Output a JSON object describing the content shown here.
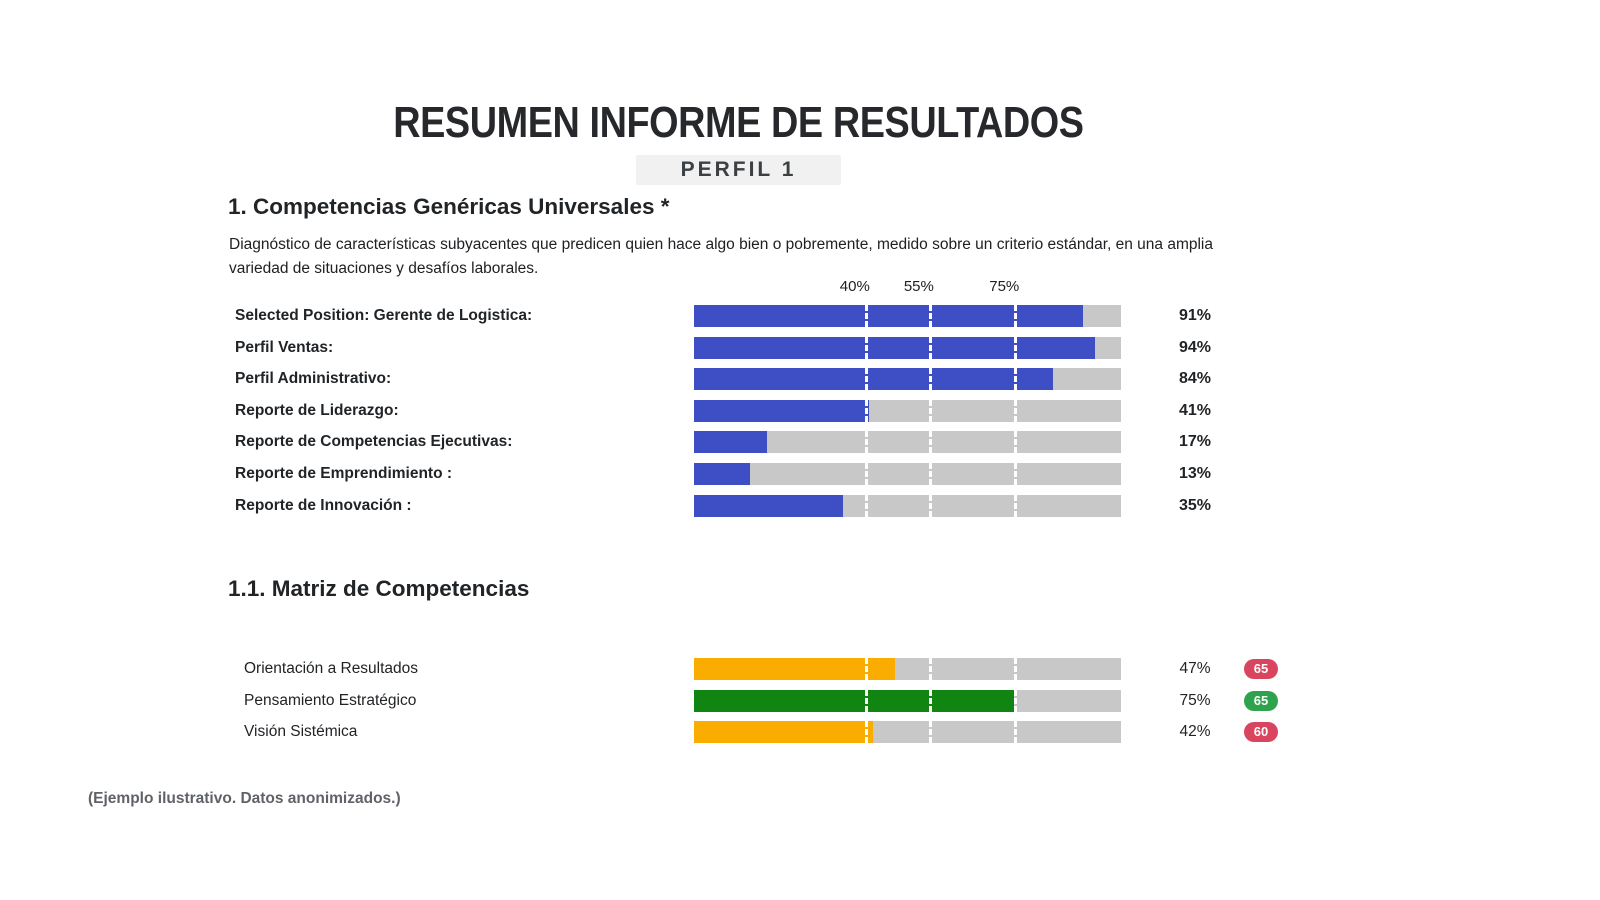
{
  "page": {
    "title": "RESUMEN INFORME DE RESULTADOS",
    "subtitle": "PERFIL 1",
    "footnote": "(Ejemplo ilustrativo. Datos anonimizados.)"
  },
  "sections": {
    "s1": {
      "heading": "1. Competencias Genéricas Universales *",
      "description": "Diagnóstico de características subyacentes que predicen quien hace algo bien o pobremente, medido sobre un criterio estándar, en una amplia variedad de situaciones y desafíos laborales."
    },
    "s11": {
      "heading": "1.1. Matriz de Competencias"
    }
  },
  "colors": {
    "bar_blue": "#3e4ec5",
    "bar_orange": "#fbac00",
    "bar_green": "#118511",
    "track_gray": "#c8c8c8",
    "badge_red": "#d9455f",
    "badge_green": "#2ea24d"
  },
  "chart_data": [
    {
      "type": "bar",
      "title": "Competencias Genéricas Universales",
      "xlim": [
        0,
        100
      ],
      "axis_ticks": [
        {
          "label": "40%",
          "value": 40
        },
        {
          "label": "55%",
          "value": 55
        },
        {
          "label": "75%",
          "value": 75
        }
      ],
      "legend_position": "none",
      "grid": false,
      "rows": [
        {
          "label": "Selected Position: Gerente de Logistica:",
          "value": 91,
          "display": "91%",
          "color": "#3e4ec5"
        },
        {
          "label": "Perfil Ventas:",
          "value": 94,
          "display": "94%",
          "color": "#3e4ec5"
        },
        {
          "label": "Perfil Administrativo:",
          "value": 84,
          "display": "84%",
          "color": "#3e4ec5"
        },
        {
          "label": "Reporte de Liderazgo:",
          "value": 41,
          "display": "41%",
          "color": "#3e4ec5"
        },
        {
          "label": "Reporte de Competencias Ejecutivas:",
          "value": 17,
          "display": "17%",
          "color": "#3e4ec5"
        },
        {
          "label": "Reporte de Emprendimiento :",
          "value": 13,
          "display": "13%",
          "color": "#3e4ec5"
        },
        {
          "label": "Reporte de Innovación :",
          "value": 35,
          "display": "35%",
          "color": "#3e4ec5"
        }
      ]
    },
    {
      "type": "bar",
      "title": "Matriz de Competencias",
      "xlim": [
        0,
        100
      ],
      "axis_ticks": [
        {
          "label": "",
          "value": 40
        },
        {
          "label": "",
          "value": 55
        },
        {
          "label": "",
          "value": 75
        }
      ],
      "legend_position": "none",
      "grid": false,
      "rows": [
        {
          "label": "Orientación a Resultados",
          "value": 47,
          "display": "47%",
          "color": "#fbac00",
          "badge": {
            "text": "65",
            "color": "#d9455f"
          }
        },
        {
          "label": "Pensamiento Estratégico",
          "value": 75,
          "display": "75%",
          "color": "#118511",
          "badge": {
            "text": "65",
            "color": "#2ea24d"
          }
        },
        {
          "label": "Visión Sistémica",
          "value": 42,
          "display": "42%",
          "color": "#fbac00",
          "badge": {
            "text": "60",
            "color": "#d9455f"
          }
        }
      ]
    }
  ]
}
